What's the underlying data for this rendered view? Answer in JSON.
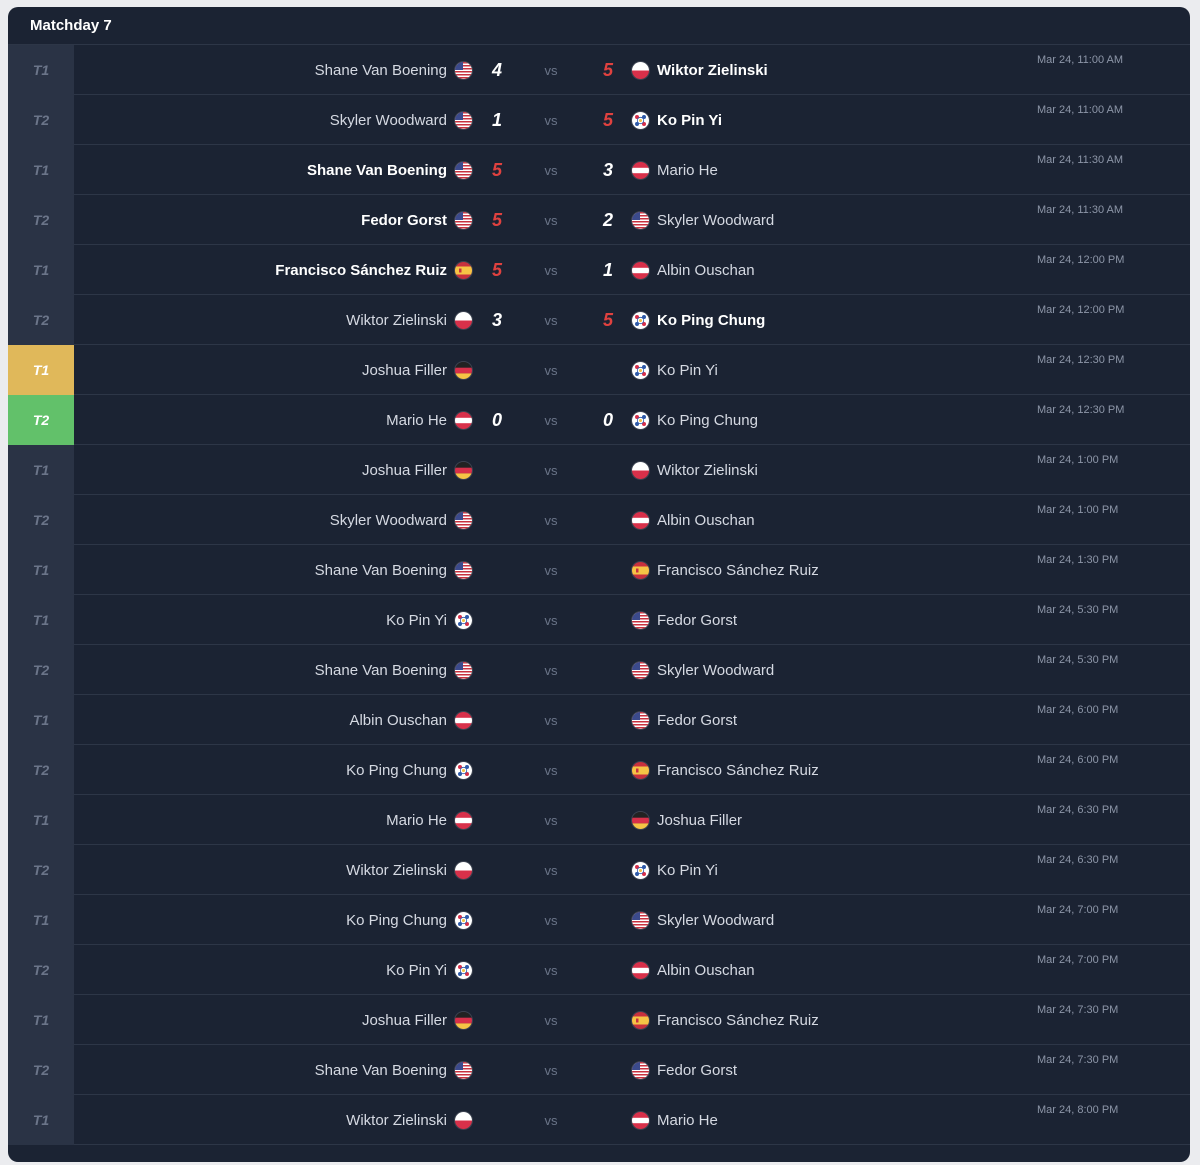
{
  "matchday": {
    "title": "Matchday 7"
  },
  "vs_label": "vs",
  "colors": {
    "panel_bg": "#1b2333",
    "table_cell_bg": "#2a3345",
    "active_table_yellow": "#e0b85a",
    "active_table_green": "#62c16a",
    "winning_score": "#e0413f"
  },
  "matches": [
    {
      "table": "T1",
      "home": "Shane Van Boening",
      "home_flag": "usa-flag-icon",
      "home_score": "4",
      "away_score": "5",
      "away": "Wiktor Zielinski",
      "away_flag": "poland-flag-icon",
      "winner": "away",
      "time": "Mar 24, 11:00 AM",
      "table_state": ""
    },
    {
      "table": "T2",
      "home": "Skyler Woodward",
      "home_flag": "usa-flag-icon",
      "home_score": "1",
      "away_score": "5",
      "away": "Ko Pin Yi",
      "away_flag": "chinese-taipei-flag-icon",
      "winner": "away",
      "time": "Mar 24, 11:00 AM",
      "table_state": ""
    },
    {
      "table": "T1",
      "home": "Shane Van Boening",
      "home_flag": "usa-flag-icon",
      "home_score": "5",
      "away_score": "3",
      "away": "Mario He",
      "away_flag": "austria-flag-icon",
      "winner": "home",
      "time": "Mar 24, 11:30 AM",
      "table_state": ""
    },
    {
      "table": "T2",
      "home": "Fedor Gorst",
      "home_flag": "usa-flag-icon",
      "home_score": "5",
      "away_score": "2",
      "away": "Skyler Woodward",
      "away_flag": "usa-flag-icon",
      "winner": "home",
      "time": "Mar 24, 11:30 AM",
      "table_state": ""
    },
    {
      "table": "T1",
      "home": "Francisco Sánchez Ruiz",
      "home_flag": "spain-flag-icon",
      "home_score": "5",
      "away_score": "1",
      "away": "Albin Ouschan",
      "away_flag": "austria-flag-icon",
      "winner": "home",
      "time": "Mar 24, 12:00 PM",
      "table_state": ""
    },
    {
      "table": "T2",
      "home": "Wiktor Zielinski",
      "home_flag": "poland-flag-icon",
      "home_score": "3",
      "away_score": "5",
      "away": "Ko Ping Chung",
      "away_flag": "chinese-taipei-flag-icon",
      "winner": "away",
      "time": "Mar 24, 12:00 PM",
      "table_state": ""
    },
    {
      "table": "T1",
      "home": "Joshua Filler",
      "home_flag": "germany-flag-icon",
      "home_score": "",
      "away_score": "",
      "away": "Ko Pin Yi",
      "away_flag": "chinese-taipei-flag-icon",
      "winner": "",
      "time": "Mar 24, 12:30 PM",
      "table_state": "yellow"
    },
    {
      "table": "T2",
      "home": "Mario He",
      "home_flag": "austria-flag-icon",
      "home_score": "0",
      "away_score": "0",
      "away": "Ko Ping Chung",
      "away_flag": "chinese-taipei-flag-icon",
      "winner": "",
      "time": "Mar 24, 12:30 PM",
      "table_state": "green"
    },
    {
      "table": "T1",
      "home": "Joshua Filler",
      "home_flag": "germany-flag-icon",
      "home_score": "",
      "away_score": "",
      "away": "Wiktor Zielinski",
      "away_flag": "poland-flag-icon",
      "winner": "",
      "time": "Mar 24, 1:00 PM",
      "table_state": ""
    },
    {
      "table": "T2",
      "home": "Skyler Woodward",
      "home_flag": "usa-flag-icon",
      "home_score": "",
      "away_score": "",
      "away": "Albin Ouschan",
      "away_flag": "austria-flag-icon",
      "winner": "",
      "time": "Mar 24, 1:00 PM",
      "table_state": ""
    },
    {
      "table": "T1",
      "home": "Shane Van Boening",
      "home_flag": "usa-flag-icon",
      "home_score": "",
      "away_score": "",
      "away": "Francisco Sánchez Ruiz",
      "away_flag": "spain-flag-icon",
      "winner": "",
      "time": "Mar 24, 1:30 PM",
      "table_state": ""
    },
    {
      "table": "T1",
      "home": "Ko Pin Yi",
      "home_flag": "chinese-taipei-flag-icon",
      "home_score": "",
      "away_score": "",
      "away": "Fedor Gorst",
      "away_flag": "usa-flag-icon",
      "winner": "",
      "time": "Mar 24, 5:30 PM",
      "table_state": ""
    },
    {
      "table": "T2",
      "home": "Shane Van Boening",
      "home_flag": "usa-flag-icon",
      "home_score": "",
      "away_score": "",
      "away": "Skyler Woodward",
      "away_flag": "usa-flag-icon",
      "winner": "",
      "time": "Mar 24, 5:30 PM",
      "table_state": ""
    },
    {
      "table": "T1",
      "home": "Albin Ouschan",
      "home_flag": "austria-flag-icon",
      "home_score": "",
      "away_score": "",
      "away": "Fedor Gorst",
      "away_flag": "usa-flag-icon",
      "winner": "",
      "time": "Mar 24, 6:00 PM",
      "table_state": ""
    },
    {
      "table": "T2",
      "home": "Ko Ping Chung",
      "home_flag": "chinese-taipei-flag-icon",
      "home_score": "",
      "away_score": "",
      "away": "Francisco Sánchez Ruiz",
      "away_flag": "spain-flag-icon",
      "winner": "",
      "time": "Mar 24, 6:00 PM",
      "table_state": ""
    },
    {
      "table": "T1",
      "home": "Mario He",
      "home_flag": "austria-flag-icon",
      "home_score": "",
      "away_score": "",
      "away": "Joshua Filler",
      "away_flag": "germany-flag-icon",
      "winner": "",
      "time": "Mar 24, 6:30 PM",
      "table_state": ""
    },
    {
      "table": "T2",
      "home": "Wiktor Zielinski",
      "home_flag": "poland-flag-icon",
      "home_score": "",
      "away_score": "",
      "away": "Ko Pin Yi",
      "away_flag": "chinese-taipei-flag-icon",
      "winner": "",
      "time": "Mar 24, 6:30 PM",
      "table_state": ""
    },
    {
      "table": "T1",
      "home": "Ko Ping Chung",
      "home_flag": "chinese-taipei-flag-icon",
      "home_score": "",
      "away_score": "",
      "away": "Skyler Woodward",
      "away_flag": "usa-flag-icon",
      "winner": "",
      "time": "Mar 24, 7:00 PM",
      "table_state": ""
    },
    {
      "table": "T2",
      "home": "Ko Pin Yi",
      "home_flag": "chinese-taipei-flag-icon",
      "home_score": "",
      "away_score": "",
      "away": "Albin Ouschan",
      "away_flag": "austria-flag-icon",
      "winner": "",
      "time": "Mar 24, 7:00 PM",
      "table_state": ""
    },
    {
      "table": "T1",
      "home": "Joshua Filler",
      "home_flag": "germany-flag-icon",
      "home_score": "",
      "away_score": "",
      "away": "Francisco Sánchez Ruiz",
      "away_flag": "spain-flag-icon",
      "winner": "",
      "time": "Mar 24, 7:30 PM",
      "table_state": ""
    },
    {
      "table": "T2",
      "home": "Shane Van Boening",
      "home_flag": "usa-flag-icon",
      "home_score": "",
      "away_score": "",
      "away": "Fedor Gorst",
      "away_flag": "usa-flag-icon",
      "winner": "",
      "time": "Mar 24, 7:30 PM",
      "table_state": ""
    },
    {
      "table": "T1",
      "home": "Wiktor Zielinski",
      "home_flag": "poland-flag-icon",
      "home_score": "",
      "away_score": "",
      "away": "Mario He",
      "away_flag": "austria-flag-icon",
      "winner": "",
      "time": "Mar 24, 8:00 PM",
      "table_state": ""
    }
  ]
}
